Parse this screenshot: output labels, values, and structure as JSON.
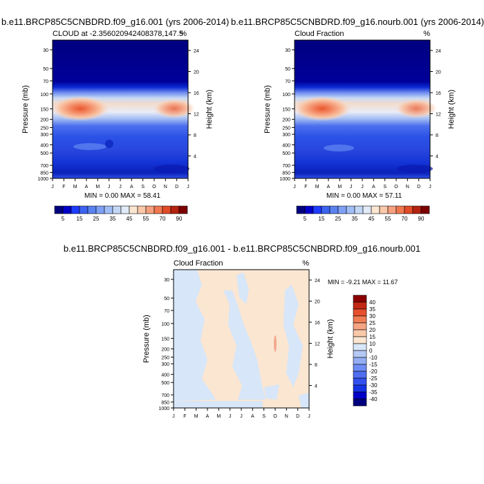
{
  "chart_data": [
    {
      "type": "heatmap",
      "title_left": "b.e11.BRCP85C5CNBDRD.f09_g16.001 (yrs 2006-2014)",
      "subtitle_left": "CLOUD at -2.356020942408378,147.5",
      "subtitle_right": "%",
      "xlabel": "",
      "ylabel": "Pressure (mb)",
      "ylabel_right": "Height (km)",
      "x_ticks": [
        "J",
        "F",
        "M",
        "A",
        "M",
        "J",
        "J",
        "A",
        "S",
        "O",
        "N",
        "D",
        "J"
      ],
      "y_ticks": [
        30,
        50,
        70,
        100,
        150,
        200,
        250,
        300,
        400,
        500,
        700,
        850,
        1000
      ],
      "y_right_ticks": [
        24,
        20,
        16,
        12,
        8,
        4
      ],
      "y_scale": "log",
      "stats_text": "MIN =   0.00 MAX =  58.41",
      "colorbar_labels": [
        "5",
        "15",
        "25",
        "35",
        "45",
        "55",
        "70",
        "90"
      ],
      "min": 0.0,
      "max": 58.41
    },
    {
      "type": "heatmap",
      "title_left": "b.e11.BRCP85C5CNBDRD.f09_g16.nourb.001 (yrs 2006-2014)",
      "subtitle_left": "Cloud Fraction",
      "subtitle_right": "%",
      "xlabel": "",
      "ylabel": "Pressure (mb)",
      "ylabel_right": "Height (km)",
      "x_ticks": [
        "J",
        "F",
        "M",
        "A",
        "M",
        "J",
        "J",
        "A",
        "S",
        "O",
        "N",
        "D",
        "J"
      ],
      "y_ticks": [
        30,
        50,
        70,
        100,
        150,
        200,
        250,
        300,
        400,
        500,
        700,
        850,
        1000
      ],
      "y_right_ticks": [
        24,
        20,
        16,
        12,
        8,
        4
      ],
      "y_scale": "log",
      "stats_text": "MIN =   0.00 MAX =  57.11",
      "colorbar_labels": [
        "5",
        "15",
        "25",
        "35",
        "45",
        "55",
        "70",
        "90"
      ],
      "min": 0.0,
      "max": 57.11
    },
    {
      "type": "heatmap",
      "title_left": "b.e11.BRCP85C5CNBDRD.f09_g16.001 - b.e11.BRCP85C5CNBDRD.f09_g16.nourb.001",
      "subtitle_left": "Cloud Fraction",
      "subtitle_right": "%",
      "xlabel": "",
      "ylabel": "Pressure (mb)",
      "ylabel_right": "Height (km)",
      "x_ticks": [
        "J",
        "F",
        "M",
        "A",
        "M",
        "J",
        "J",
        "A",
        "S",
        "O",
        "N",
        "D",
        "J"
      ],
      "y_ticks": [
        30,
        50,
        70,
        100,
        150,
        200,
        250,
        300,
        400,
        500,
        700,
        850,
        1000
      ],
      "y_right_ticks": [
        24,
        20,
        16,
        12,
        8,
        4
      ],
      "y_scale": "log",
      "stats_text": "MIN =  -9.21 MAX =  11.67",
      "colorbar_labels": [
        "40",
        "35",
        "30",
        "25",
        "20",
        "15",
        "10",
        "0",
        "-10",
        "-15",
        "-20",
        "-25",
        "-30",
        "-35",
        "-40"
      ],
      "min": -9.21,
      "max": 11.67
    }
  ],
  "colors": {
    "cloud_scale": [
      "#00007f",
      "#0000c8",
      "#1e3cff",
      "#3c64f0",
      "#5a82f0",
      "#7ea0f5",
      "#a0bef5",
      "#c3d7f5",
      "#e1ebf8",
      "#fbe6d2",
      "#fac8aa",
      "#f5a07e",
      "#f07850",
      "#e14b28",
      "#b4230f",
      "#7d0000"
    ],
    "diff_scale": [
      "#00007f",
      "#0000c8",
      "#1432e6",
      "#3250f0",
      "#4f6ef0",
      "#6e8cf5",
      "#94aef5",
      "#b4c8f5",
      "#d7e6f8",
      "#fbe6d2",
      "#fac8aa",
      "#f5a582",
      "#f07d55",
      "#e6502d",
      "#c32814",
      "#8c0000"
    ]
  }
}
